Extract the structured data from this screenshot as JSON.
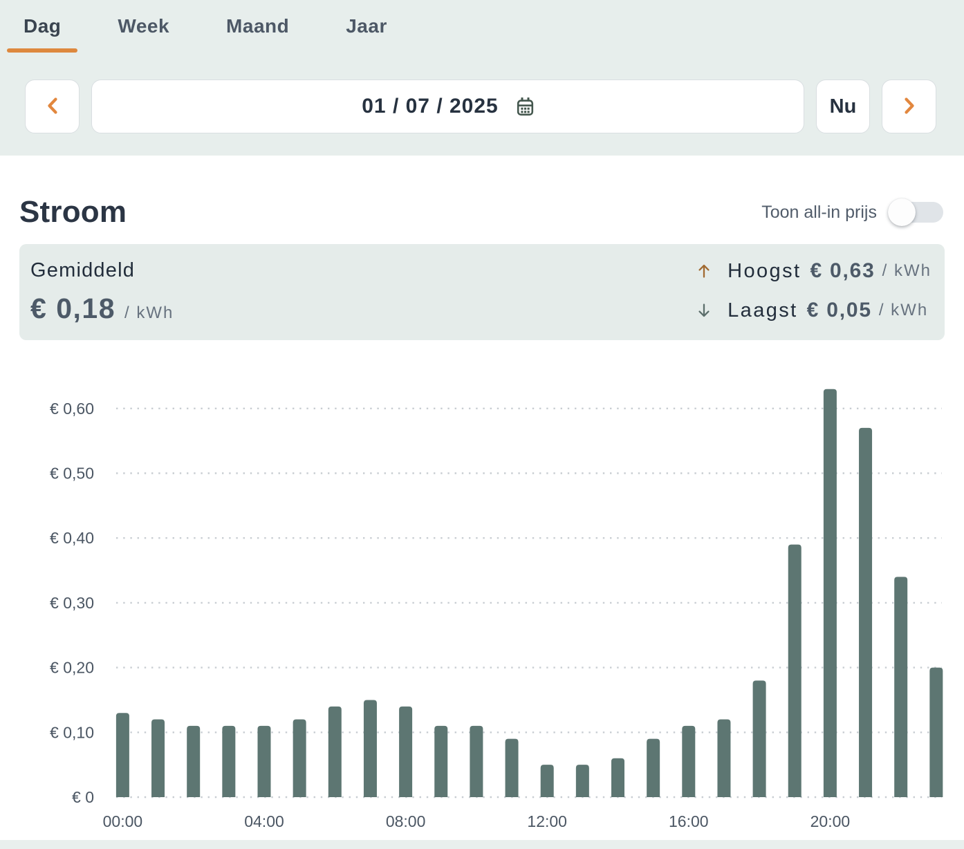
{
  "tabs": {
    "items": [
      {
        "label": "Dag",
        "active": true
      },
      {
        "label": "Week",
        "active": false
      },
      {
        "label": "Maand",
        "active": false
      },
      {
        "label": "Jaar",
        "active": false
      }
    ]
  },
  "controls": {
    "prev_icon": "chevron-left",
    "date_value": "01 / 07 / 2025",
    "calendar_icon": "calendar",
    "now_label": "Nu",
    "next_icon": "chevron-right"
  },
  "section": {
    "title": "Stroom",
    "toggle_label": "Toon all-in prijs",
    "toggle_state": "off"
  },
  "summary": {
    "average": {
      "label": "Gemiddeld",
      "value": "€ 0,18",
      "unit": "/ kWh"
    },
    "highest": {
      "icon": "arrow-up",
      "label": "Hoogst",
      "value": "€ 0,63",
      "unit": "/ kWh"
    },
    "lowest": {
      "icon": "arrow-down",
      "label": "Laagst",
      "value": "€ 0,05",
      "unit": "/ kWh"
    }
  },
  "chart_data": {
    "type": "bar",
    "title": "Stroom",
    "ylabel": "",
    "xlabel": "",
    "x": [
      "00:00",
      "01:00",
      "02:00",
      "03:00",
      "04:00",
      "05:00",
      "06:00",
      "07:00",
      "08:00",
      "09:00",
      "10:00",
      "11:00",
      "12:00",
      "13:00",
      "14:00",
      "15:00",
      "16:00",
      "17:00",
      "18:00",
      "19:00",
      "20:00",
      "21:00",
      "22:00",
      "23:00"
    ],
    "values": [
      0.13,
      0.12,
      0.11,
      0.11,
      0.11,
      0.12,
      0.14,
      0.15,
      0.14,
      0.11,
      0.11,
      0.09,
      0.05,
      0.05,
      0.06,
      0.09,
      0.11,
      0.12,
      0.18,
      0.39,
      0.63,
      0.57,
      0.34,
      0.2
    ],
    "unit": "€/kWh",
    "ylim": [
      0,
      0.66
    ],
    "y_ticks": [
      0,
      0.1,
      0.2,
      0.3,
      0.4,
      0.5,
      0.6
    ],
    "y_tick_labels": [
      "€ 0",
      "€ 0,10",
      "€ 0,20",
      "€ 0,30",
      "€ 0,40",
      "€ 0,50",
      "€ 0,60"
    ],
    "x_tick_labels": [
      "00:00",
      "04:00",
      "08:00",
      "12:00",
      "16:00",
      "20:00"
    ],
    "grid": "horizontal-dotted",
    "legend": "none",
    "bar_color": "#5d7672",
    "grid_color": "#c8cdd2",
    "axis_text_color": "#4b5663"
  },
  "colors": {
    "accent_orange": "#dd883e",
    "header_bg": "#e7eeec",
    "card_bg": "#e5ecea",
    "arrow_up": "#a16a31",
    "arrow_down": "#5c6f6c",
    "calendar_icon": "#44574e"
  }
}
